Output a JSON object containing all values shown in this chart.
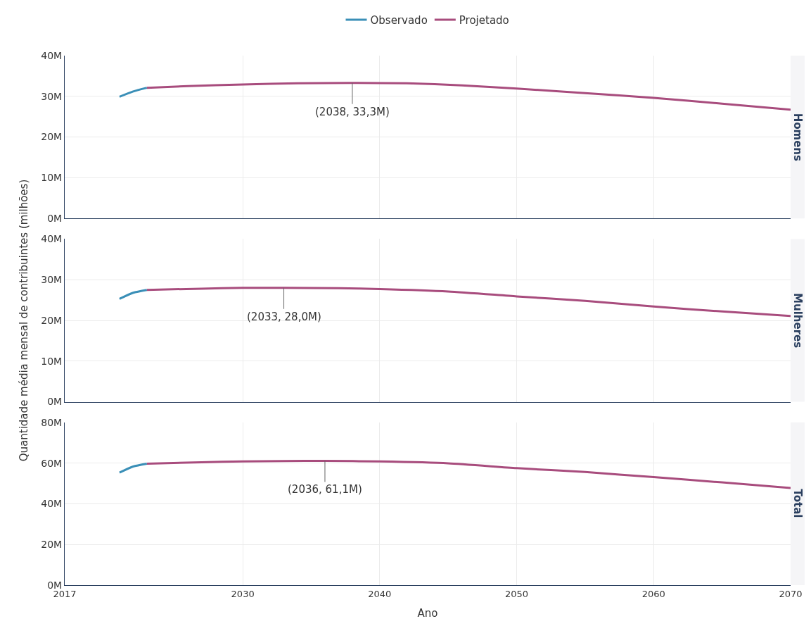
{
  "chart_data": [
    {
      "type": "line",
      "title": "Homens",
      "xlim": [
        2017,
        2070
      ],
      "xticks": [
        2017,
        2030,
        2040,
        2050,
        2060,
        2070
      ],
      "ylim": [
        0,
        40
      ],
      "yticks": [
        {
          "value": 0,
          "label": "0M"
        },
        {
          "value": 10,
          "label": "10M"
        },
        {
          "value": 20,
          "label": "20M"
        },
        {
          "value": 30,
          "label": "30M"
        },
        {
          "value": 40,
          "label": "40M"
        }
      ],
      "tick_labels": "y",
      "grid": true,
      "legend": "top",
      "marker": "none",
      "line_style": "solid",
      "series": [
        {
          "name": "Observado",
          "color": "#3a8fb7",
          "x": [
            2021,
            2022,
            2023
          ],
          "values": [
            29.9,
            31.2,
            32.1
          ]
        },
        {
          "name": "Projetado",
          "color": "#a84c7d",
          "x": [
            2023,
            2026,
            2030,
            2034,
            2038,
            2042,
            2046,
            2050,
            2055,
            2060,
            2065,
            2070
          ],
          "values": [
            32.1,
            32.5,
            32.9,
            33.2,
            33.3,
            33.2,
            32.7,
            31.9,
            30.8,
            29.6,
            28.2,
            26.7
          ]
        }
      ],
      "annotations": [
        {
          "text": "(2038, 33,3M)",
          "x": 2038,
          "y": 33.3
        }
      ]
    },
    {
      "type": "line",
      "title": "Mulheres",
      "ylabel": "Quantidade média mensal de contribuintes (milhões)",
      "xlim": [
        2017,
        2070
      ],
      "xticks": [
        2017,
        2030,
        2040,
        2050,
        2060,
        2070
      ],
      "ylim": [
        0,
        40
      ],
      "yticks": [
        {
          "value": 0,
          "label": "0M"
        },
        {
          "value": 10,
          "label": "10M"
        },
        {
          "value": 20,
          "label": "20M"
        },
        {
          "value": 30,
          "label": "30M"
        },
        {
          "value": 40,
          "label": "40M"
        }
      ],
      "tick_labels": "y",
      "grid": true,
      "marker": "none",
      "line_style": "solid",
      "series": [
        {
          "color": "#3a8fb7",
          "x": [
            2021,
            2022,
            2023
          ],
          "values": [
            25.3,
            26.8,
            27.5
          ]
        },
        {
          "color": "#a84c7d",
          "x": [
            2023,
            2027,
            2030,
            2033,
            2037,
            2040,
            2045,
            2050,
            2055,
            2060,
            2065,
            2070
          ],
          "values": [
            27.5,
            27.8,
            28.0,
            28.0,
            27.9,
            27.7,
            27.1,
            25.9,
            24.8,
            23.4,
            22.2,
            21.1
          ]
        }
      ],
      "annotations": [
        {
          "text": "(2033, 28,0M)",
          "x": 2033,
          "y": 28.0
        }
      ]
    },
    {
      "type": "line",
      "title": "Total",
      "xlabel": "Ano",
      "xlim": [
        2017,
        2070
      ],
      "xticks": [
        2017,
        2030,
        2040,
        2050,
        2060,
        2070
      ],
      "ylim": [
        0,
        80
      ],
      "yticks": [
        {
          "value": 0,
          "label": "0M"
        },
        {
          "value": 20,
          "label": "20M"
        },
        {
          "value": 40,
          "label": "40M"
        },
        {
          "value": 60,
          "label": "60M"
        },
        {
          "value": 80,
          "label": "80M"
        }
      ],
      "grid": true,
      "marker": "none",
      "line_style": "solid",
      "series": [
        {
          "color": "#3a8fb7",
          "x": [
            2021,
            2022,
            2023
          ],
          "values": [
            55.3,
            58.3,
            59.7
          ]
        },
        {
          "color": "#a84c7d",
          "x": [
            2023,
            2027,
            2030,
            2033,
            2036,
            2040,
            2045,
            2050,
            2055,
            2060,
            2065,
            2070
          ],
          "values": [
            59.7,
            60.4,
            60.8,
            61.0,
            61.1,
            60.8,
            59.9,
            57.5,
            55.6,
            53.1,
            50.5,
            47.8
          ]
        }
      ],
      "annotations": [
        {
          "text": "(2036, 61,1M)",
          "x": 2036,
          "y": 61.1
        }
      ]
    }
  ]
}
